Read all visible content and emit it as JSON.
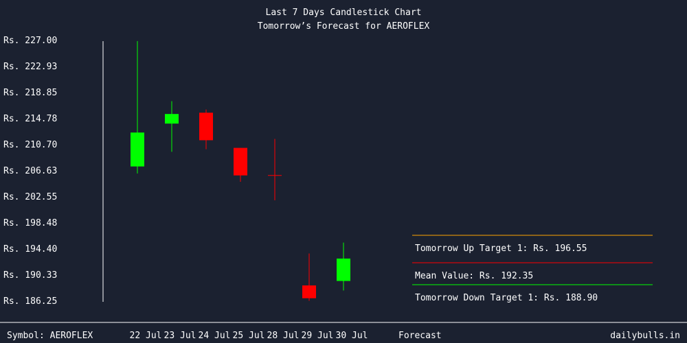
{
  "chart_data": {
    "type": "candlestick",
    "title": "Last 7 Days Candlestick Chart",
    "subtitle": "Tomorrow’s Forecast for AEROFLEX",
    "y_ticks": [
      "Rs. 227.00",
      "Rs. 222.93",
      "Rs. 218.85",
      "Rs. 214.78",
      "Rs. 210.70",
      "Rs. 206.63",
      "Rs. 202.55",
      "Rs. 198.48",
      "Rs. 194.40",
      "Rs. 190.33",
      "Rs. 186.25"
    ],
    "ylim": [
      186.25,
      227.0
    ],
    "categories": [
      "22 Jul",
      "23 Jul",
      "24 Jul",
      "25 Jul",
      "28 Jul",
      "29 Jul",
      "30 Jul"
    ],
    "candles": [
      {
        "date": "22 Jul",
        "open": 207.2,
        "high": 226.8,
        "low": 206.1,
        "close": 212.5
      },
      {
        "date": "23 Jul",
        "open": 213.9,
        "high": 217.4,
        "low": 209.5,
        "close": 215.4
      },
      {
        "date": "24 Jul",
        "open": 215.6,
        "high": 216.1,
        "low": 209.9,
        "close": 211.3
      },
      {
        "date": "25 Jul",
        "open": 210.1,
        "high": 210.1,
        "low": 204.8,
        "close": 205.8
      },
      {
        "date": "28 Jul",
        "open": 205.8,
        "high": 211.5,
        "low": 201.9,
        "close": 205.7
      },
      {
        "date": "29 Jul",
        "open": 188.6,
        "high": 193.6,
        "low": 186.2,
        "close": 186.6
      },
      {
        "date": "30 Jul",
        "open": 189.3,
        "high": 195.3,
        "low": 187.8,
        "close": 192.8
      }
    ],
    "colors": {
      "up": "#00ff00",
      "down": "#ff0000",
      "up_target": "#ffa500",
      "mean": "#ff0000",
      "down_target": "#00ff00"
    },
    "forecast": {
      "up_target_label": "Tomorrow Up Target 1: Rs. 196.55",
      "mean_label": "Mean Value: Rs. 192.35",
      "down_target_label": "Tomorrow Down Target 1: Rs. 188.90"
    }
  },
  "footer": {
    "symbol_label": "Symbol: AEROFLEX",
    "forecast_label": "Forecast",
    "brand": "dailybulls.in"
  }
}
